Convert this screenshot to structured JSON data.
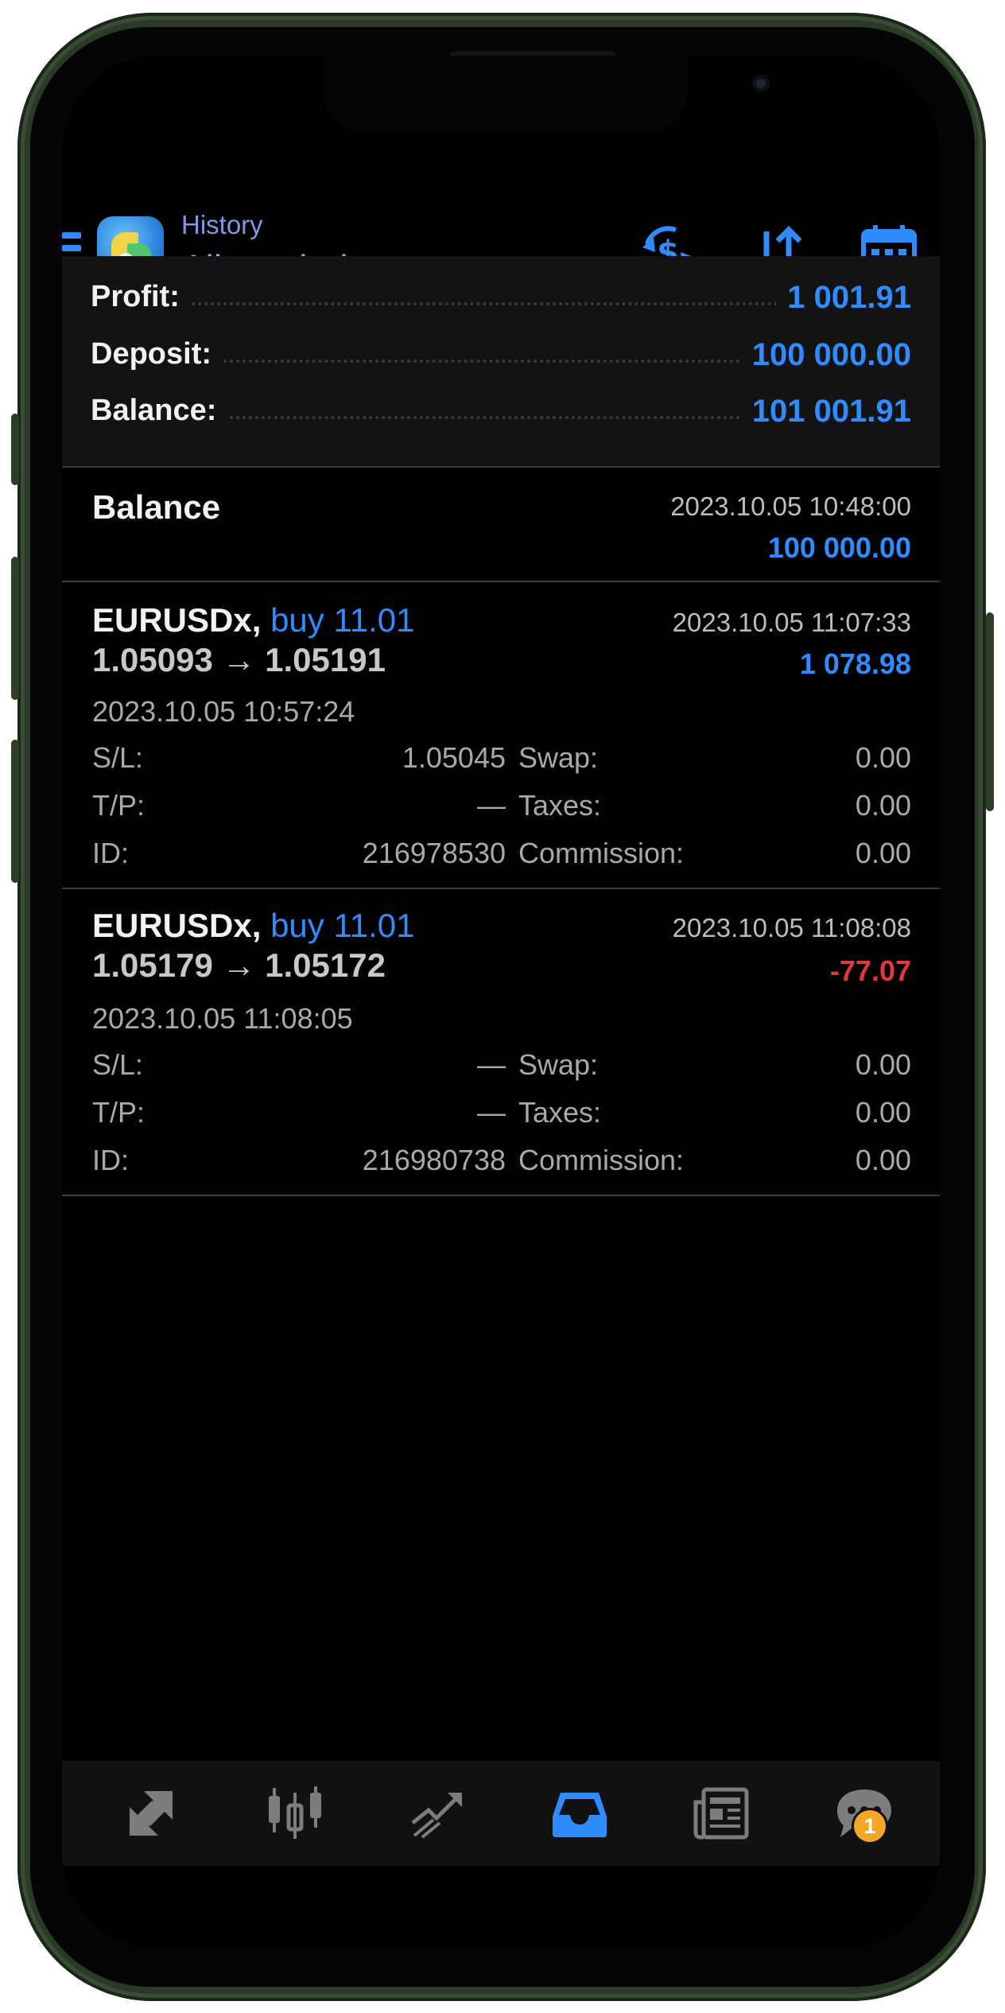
{
  "header": {
    "subtitle": "History",
    "title": "All symbols"
  },
  "summary": {
    "profit_label": "Profit:",
    "profit_value": "1 001.91",
    "deposit_label": "Deposit:",
    "deposit_value": "100 000.00",
    "balance_label": "Balance:",
    "balance_value": "101 001.91"
  },
  "balance_record": {
    "title": "Balance",
    "time": "2023.10.05 10:48:00",
    "amount": "100 000.00"
  },
  "deals": [
    {
      "symbol": "EURUSDx,",
      "side": "buy 11.01",
      "prices": "1.05093 → 1.05191",
      "close_time": "2023.10.05 11:07:33",
      "profit": "1 078.98",
      "open_time": "2023.10.05 10:57:24",
      "sl_label": "S/L:",
      "sl": "1.05045",
      "tp_label": "T/P:",
      "tp": "—",
      "id_label": "ID:",
      "id": "216978530",
      "swap_label": "Swap:",
      "swap": "0.00",
      "taxes_label": "Taxes:",
      "taxes": "0.00",
      "commission_label": "Commission:",
      "commission": "0.00"
    },
    {
      "symbol": "EURUSDx,",
      "side": "buy 11.01",
      "prices": "1.05179 → 1.05172",
      "close_time": "2023.10.05 11:08:08",
      "profit": "-77.07",
      "open_time": "2023.10.05 11:08:05",
      "sl_label": "S/L:",
      "sl": "—",
      "tp_label": "T/P:",
      "tp": "—",
      "id_label": "ID:",
      "id": "216980738",
      "swap_label": "Swap:",
      "swap": "0.00",
      "taxes_label": "Taxes:",
      "taxes": "0.00",
      "commission_label": "Commission:",
      "commission": "0.00"
    }
  ],
  "bottom_nav": {
    "items": [
      {
        "icon": "quotes-icon",
        "active": false
      },
      {
        "icon": "chart-icon",
        "active": false
      },
      {
        "icon": "trade-icon",
        "active": false
      },
      {
        "icon": "history-icon",
        "active": true
      },
      {
        "icon": "news-icon",
        "active": false
      },
      {
        "icon": "messages-icon",
        "active": false
      }
    ],
    "messages_badge": "1"
  },
  "colors": {
    "accent": "#2f8cff",
    "loss": "#e0393e",
    "background": "#000000",
    "panel": "#131313"
  }
}
